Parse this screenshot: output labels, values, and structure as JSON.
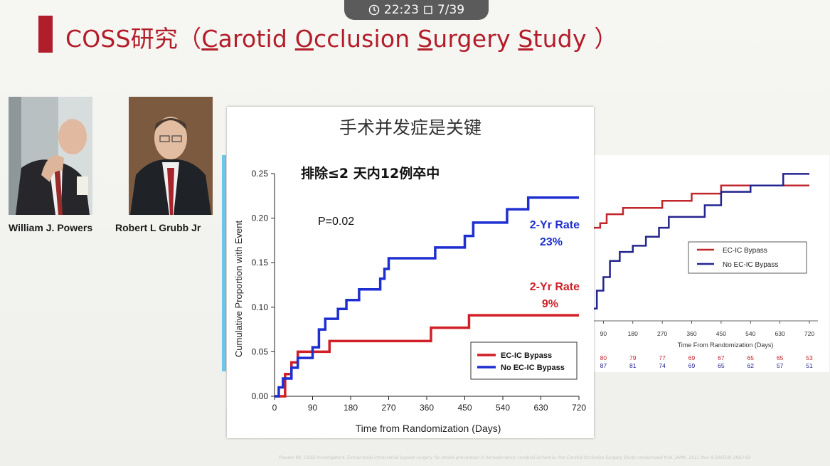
{
  "status_bar": {
    "time": "22:23",
    "page": "7/39"
  },
  "slide_title": {
    "prefix": "COSS研究（",
    "c": "C",
    "arotid": "arotid ",
    "o": "O",
    "cclusion": "cclusion ",
    "s1": "S",
    "urgery": "urgery ",
    "s2": "S",
    "tudy": "tudy ）"
  },
  "captions": {
    "person1": "William J. Powers",
    "person2": "Robert L Grubb Jr"
  },
  "chart_data": [
    {
      "type": "line",
      "title": "手术并发症是关键",
      "subtitle": "排除≤2 天内12例卒中",
      "xlabel": "Time from Randomization (Days)",
      "ylabel": "Cumulative Proportion with Event",
      "xlim": [
        0,
        720
      ],
      "ylim": [
        0,
        0.25
      ],
      "xticks": [
        "0",
        "90",
        "180",
        "270",
        "360",
        "450",
        "540",
        "630",
        "720"
      ],
      "yticks": [
        "0.00",
        "0.05",
        "0.10",
        "0.15",
        "0.20",
        "0.25"
      ],
      "annotations": {
        "p_value": "P=0.02",
        "blue_rate_label": "2-Yr Rate",
        "blue_rate_value": "23%",
        "red_rate_label": "2-Yr Rate",
        "red_rate_value": "9%"
      },
      "legend_position": "bottom-right",
      "series": [
        {
          "name": "EC-IC Bypass",
          "color": "#d01f26",
          "x": [
            0,
            25,
            40,
            55,
            70,
            130,
            370,
            460,
            720
          ],
          "y": [
            0,
            0.025,
            0.038,
            0.05,
            0.05,
            0.062,
            0.077,
            0.091,
            0.091
          ]
        },
        {
          "name": "No EC-IC Bypass",
          "color": "#1e2fd0",
          "x": [
            0,
            10,
            20,
            40,
            55,
            90,
            105,
            120,
            150,
            170,
            200,
            250,
            260,
            270,
            290,
            380,
            450,
            470,
            500,
            550,
            600,
            720
          ],
          "y": [
            0,
            0.01,
            0.02,
            0.032,
            0.043,
            0.055,
            0.075,
            0.087,
            0.098,
            0.108,
            0.12,
            0.132,
            0.143,
            0.155,
            0.155,
            0.167,
            0.18,
            0.195,
            0.195,
            0.21,
            0.223,
            0.223
          ]
        }
      ]
    },
    {
      "type": "line",
      "xlabel": "Time From Randomization (Days)",
      "xticks": [
        "90",
        "180",
        "270",
        "360",
        "450",
        "540",
        "630",
        "720"
      ],
      "xlim": [
        50,
        720
      ],
      "ylim": [
        0.09,
        0.25
      ],
      "legend_position": "top-right",
      "series": [
        {
          "name": "EC-IC Bypass",
          "color": "#c0262c",
          "x": [
            50,
            80,
            100,
            150,
            270,
            360,
            450,
            720
          ],
          "y": [
            0.185,
            0.19,
            0.2,
            0.207,
            0.215,
            0.223,
            0.232,
            0.232
          ]
        },
        {
          "name": "No EC-IC Bypass",
          "color": "#24248f",
          "x": [
            50,
            70,
            90,
            110,
            140,
            180,
            220,
            260,
            290,
            340,
            400,
            450,
            540,
            640,
            720
          ],
          "y": [
            0.095,
            0.115,
            0.13,
            0.148,
            0.158,
            0.165,
            0.175,
            0.185,
            0.197,
            0.197,
            0.21,
            0.225,
            0.232,
            0.245,
            0.245
          ]
        }
      ],
      "risk_table": {
        "ec_ic": [
          "80",
          "79",
          "77",
          "69",
          "67",
          "65",
          "65",
          "53"
        ],
        "no_ec_ic": [
          "87",
          "81",
          "74",
          "69",
          "65",
          "62",
          "57",
          "51"
        ]
      }
    }
  ],
  "footer": "Powers WJ; COSS Investigators. Extracranial-intracranial bypass surgery for stroke prevention in hemodynamic cerebral ischemia: the Carotid Occlusion Surgery Study randomized trial. JAMA. 2011 Nov 9;306(18):1983-92"
}
